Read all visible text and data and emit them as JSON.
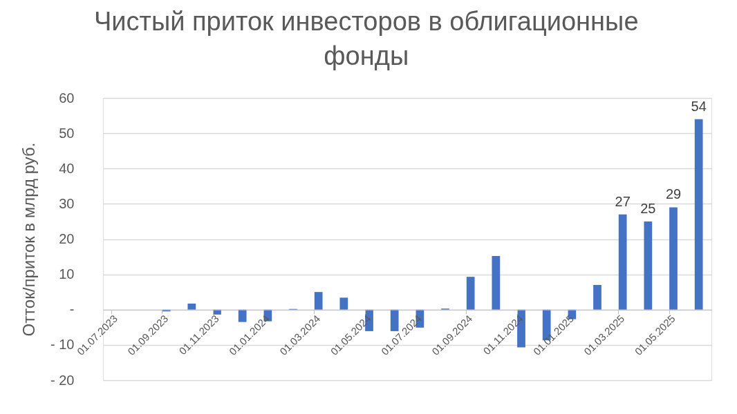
{
  "chart_data": {
    "type": "bar",
    "title": "Чистый приток инвесторов в облигационные фонды",
    "ylabel": "Отток/приток в млрд руб.",
    "categories": [
      "01.07.2023",
      null,
      "01.09.2023",
      null,
      "01.11.2023",
      null,
      "01.01.2024",
      null,
      "01.03.2024",
      null,
      "01.05.2024",
      null,
      "01.07.2024",
      null,
      "01.09.2024",
      null,
      "01.11.2024",
      null,
      "01.01.2025",
      null,
      "01.03.2025",
      null,
      "01.05.2025",
      null
    ],
    "values": [
      null,
      null,
      -0.5,
      1.7,
      -1.4,
      -3.5,
      -3.3,
      0.2,
      5.0,
      3.4,
      -6.1,
      -6.1,
      -5.1,
      0.3,
      9.3,
      15.2,
      -10.7,
      -8.7,
      -2.7,
      7.0,
      27,
      25,
      29,
      54
    ],
    "value_labels": [
      null,
      null,
      null,
      null,
      null,
      null,
      null,
      null,
      null,
      null,
      null,
      null,
      null,
      null,
      null,
      null,
      null,
      null,
      null,
      null,
      "27",
      "25",
      "29",
      "54"
    ],
    "color": "#4472c4",
    "ylim": [
      -20,
      60
    ],
    "yticks": [
      {
        "value": -20,
        "label": "- 20"
      },
      {
        "value": -10,
        "label": "- 10"
      },
      {
        "value": 0,
        "label": "-"
      },
      10,
      20,
      30,
      40,
      50,
      60
    ],
    "grid": "y"
  }
}
